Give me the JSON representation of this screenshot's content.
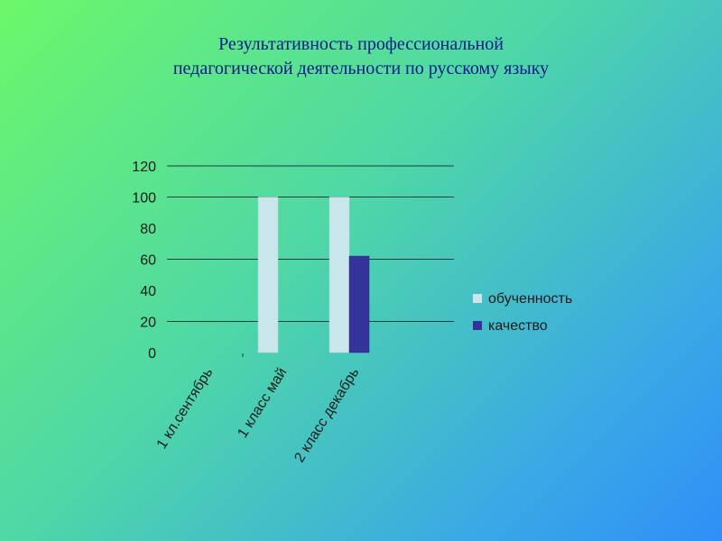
{
  "slide": {
    "title_line1": "Результативность профессиональной",
    "title_line2": "педагогической деятельности по русскому языку"
  },
  "colors": {
    "title": "#0a1a8c",
    "series1": "#c9e6ea",
    "series2": "#333399",
    "gridline": "#1a3a3a",
    "axis_text": "#1a1a1a"
  },
  "chart_data": {
    "type": "bar",
    "categories": [
      "1 кл.сентябрь",
      "1 класс май",
      "2 класс декабрь"
    ],
    "series": [
      {
        "name": "обученность",
        "values": [
          0,
          100,
          100
        ]
      },
      {
        "name": "качество",
        "values": [
          0,
          0,
          62
        ]
      }
    ],
    "ylim": [
      0,
      120
    ],
    "yticks": [
      "0",
      "20",
      "40",
      "60",
      "80",
      "100",
      "120"
    ],
    "grid": true,
    "legend": "right"
  }
}
